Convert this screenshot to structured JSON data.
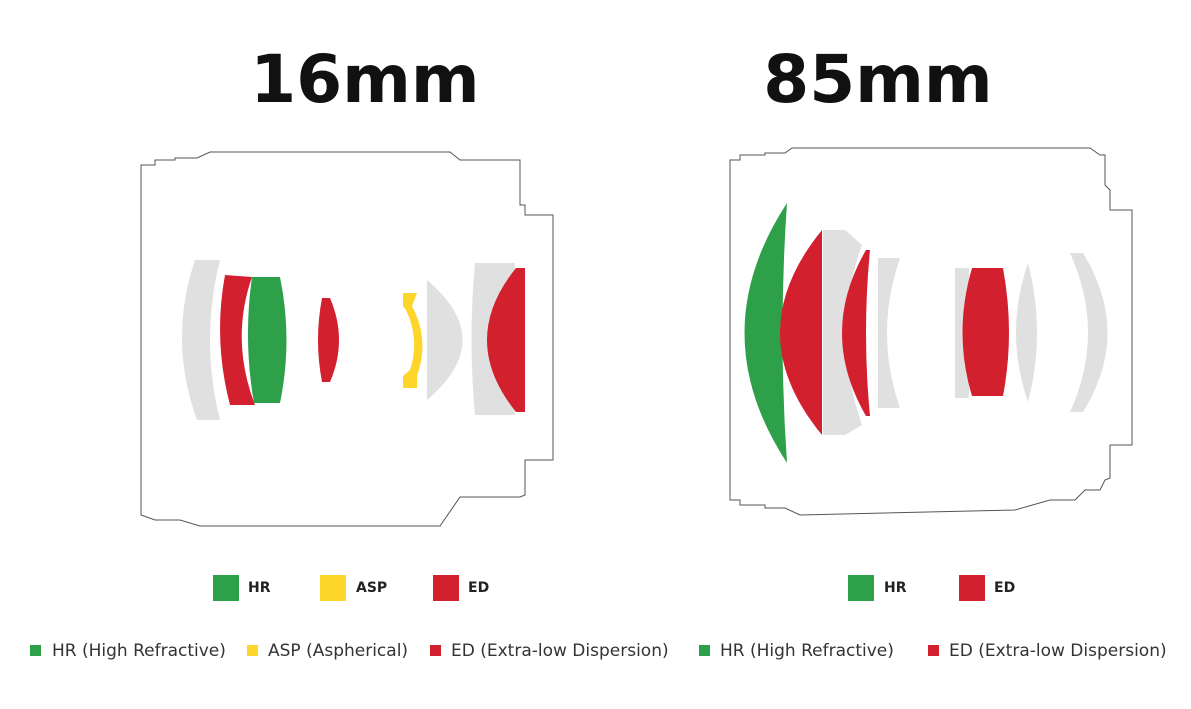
{
  "panels": [
    {
      "title": "16mm",
      "legend": [
        "HR",
        "ASP",
        "ED"
      ]
    },
    {
      "title": "85mm",
      "legend": [
        "HR",
        "ED"
      ]
    }
  ],
  "footer_legend": [
    "HR (High Refractive)",
    "ASP (Aspherical)",
    "ED (Extra-low Dispersion)",
    "HR (High Refractive)",
    "ED (Extra-low Dispersion)"
  ]
}
